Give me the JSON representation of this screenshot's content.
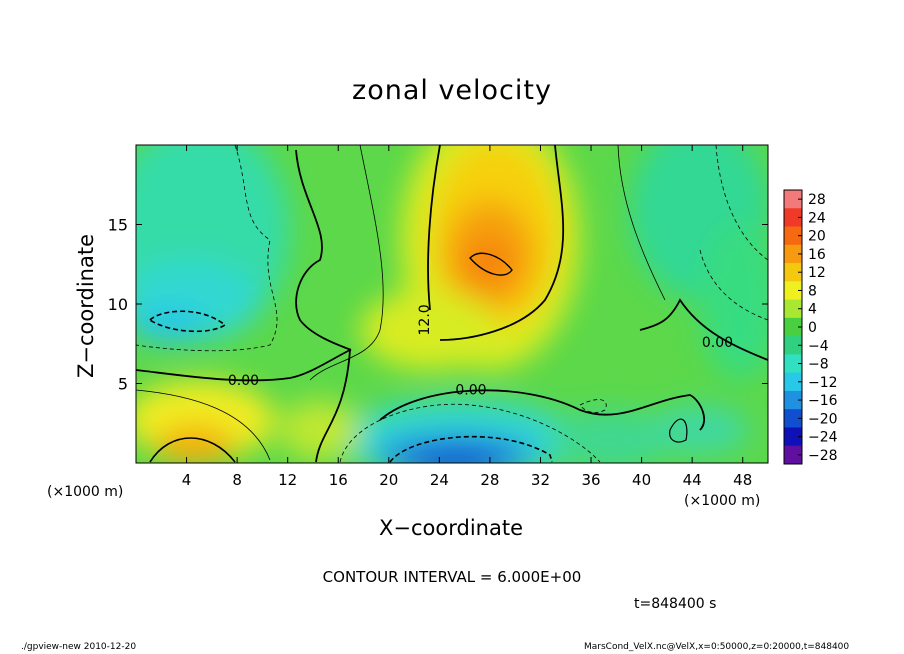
{
  "title": "zonal velocity",
  "footer": {
    "left": "./gpview-new   2010-12-20",
    "right": "MarsCond_VelX.nc@VelX,x=0:50000,z=0:20000,t=848400"
  },
  "notes": {
    "contour_interval": "CONTOUR INTERVAL = 6.000E+00",
    "time": "t=848400  s"
  },
  "chart_data": {
    "type": "heatmap",
    "title": "zonal velocity",
    "xlabel": "X−coordinate",
    "ylabel": "Z−coordinate",
    "x_unit_label": "(×1000 m)",
    "xlim": [
      0,
      50
    ],
    "ylim": [
      0,
      20
    ],
    "x_ticks": [
      4,
      8,
      12,
      16,
      20,
      24,
      28,
      32,
      36,
      40,
      44,
      48
    ],
    "y_ticks": [
      5,
      10,
      15
    ],
    "contour_interval": 6,
    "contour_labels": [
      {
        "text": "0.00",
        "x": 8.5,
        "z": 4.9
      },
      {
        "text": "0.00",
        "x": 26.5,
        "z": 4.3
      },
      {
        "text": "12.0",
        "x": 23.2,
        "z": 9.0,
        "rotated": true
      },
      {
        "text": "0.00",
        "x": 46.0,
        "z": 7.3
      }
    ],
    "features": [
      {
        "kind": "max",
        "x": 28,
        "z": 12.5,
        "value": 18
      },
      {
        "kind": "min",
        "x": 28,
        "z": 0.3,
        "value": -24
      },
      {
        "kind": "min",
        "x": 3,
        "z": 8.5,
        "value": -12
      },
      {
        "kind": "max",
        "x": 4,
        "z": 1.2,
        "value": 18
      }
    ],
    "colorbar": {
      "tick_labels": [
        "28",
        "24",
        "20",
        "16",
        "12",
        "8",
        "4",
        "0",
        "−4",
        "−8",
        "−12",
        "−16",
        "−20",
        "−24",
        "−28"
      ],
      "levels": [
        28,
        24,
        20,
        16,
        12,
        8,
        4,
        0,
        -4,
        -8,
        -12,
        -16,
        -20,
        -24,
        -28
      ],
      "colors": [
        "#f27a7a",
        "#f03a28",
        "#f56a10",
        "#f89a10",
        "#f5c810",
        "#f0f020",
        "#a8e830",
        "#48d040",
        "#30d080",
        "#30e0c0",
        "#28c8e8",
        "#2090e0",
        "#1050d0",
        "#1010b8",
        "#6010a0"
      ]
    }
  }
}
